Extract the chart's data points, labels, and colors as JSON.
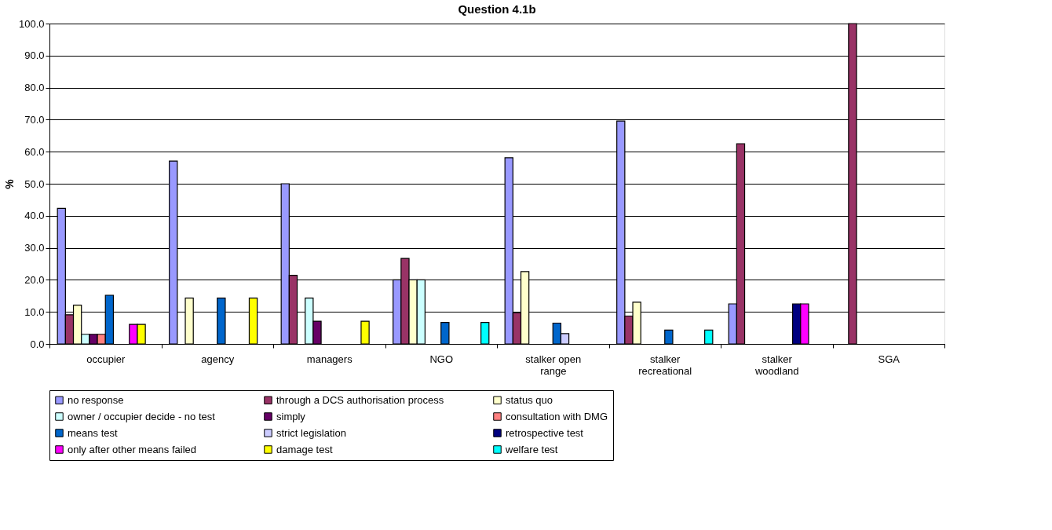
{
  "chart_data": {
    "type": "bar",
    "title": "Question 4.1b",
    "ylabel": "%",
    "categories": [
      "occupier",
      "agency",
      "managers",
      "NGO",
      "stalker open range",
      "stalker recreational",
      "stalker woodland",
      "SGA"
    ],
    "series": [
      {
        "name": "no response",
        "color": "#9999ff",
        "values": [
          42.3,
          57.1,
          50.0,
          20.0,
          58.1,
          69.6,
          12.5,
          null
        ]
      },
      {
        "name": "through a DCS authorisation process",
        "color": "#993366",
        "values": [
          9.1,
          null,
          21.4,
          26.7,
          9.7,
          8.7,
          62.5,
          100.0
        ]
      },
      {
        "name": "status quo",
        "color": "#ffffcc",
        "values": [
          12.1,
          14.3,
          null,
          20.0,
          22.6,
          13.0,
          null,
          null
        ]
      },
      {
        "name": "owner / occupier decide - no test",
        "color": "#ccffff",
        "values": [
          3.0,
          null,
          14.3,
          20.0,
          null,
          null,
          null,
          null
        ]
      },
      {
        "name": "simply",
        "color": "#660066",
        "values": [
          3.0,
          null,
          7.1,
          null,
          null,
          null,
          null,
          null
        ]
      },
      {
        "name": "consultation with DMG",
        "color": "#ff8080",
        "values": [
          3.0,
          null,
          null,
          null,
          null,
          null,
          null,
          null
        ]
      },
      {
        "name": "means test",
        "color": "#0066cc",
        "values": [
          15.2,
          14.3,
          null,
          6.7,
          6.5,
          4.3,
          null,
          null
        ]
      },
      {
        "name": "strict legislation",
        "color": "#ccccff",
        "values": [
          null,
          null,
          null,
          null,
          3.2,
          null,
          null,
          null
        ]
      },
      {
        "name": "retrospective test",
        "color": "#000080",
        "values": [
          null,
          null,
          null,
          null,
          null,
          null,
          12.5,
          null
        ]
      },
      {
        "name": "only after other means failed",
        "color": "#ff00ff",
        "values": [
          6.1,
          null,
          null,
          null,
          null,
          null,
          12.5,
          null
        ]
      },
      {
        "name": "damage test",
        "color": "#ffff00",
        "values": [
          6.1,
          14.3,
          7.1,
          null,
          null,
          null,
          null,
          null
        ]
      },
      {
        "name": "welfare test",
        "color": "#00ffff",
        "values": [
          null,
          null,
          null,
          6.7,
          null,
          4.3,
          null,
          null
        ]
      }
    ],
    "ylim": [
      0,
      100
    ],
    "yticks": [
      {
        "value": 0,
        "label": "0.0"
      },
      {
        "value": 10,
        "label": "10.0"
      },
      {
        "value": 20,
        "label": "20.0"
      },
      {
        "value": 30,
        "label": "30.0"
      },
      {
        "value": 40,
        "label": "40.0"
      },
      {
        "value": 50,
        "label": "50.0"
      },
      {
        "value": 60,
        "label": "60.0"
      },
      {
        "value": 70,
        "label": "70.0"
      },
      {
        "value": 80,
        "label": "80.0"
      },
      {
        "value": 90,
        "label": "90.0"
      },
      {
        "value": 100,
        "label": "100.0"
      }
    ],
    "grid": "y",
    "legend": "bottom"
  }
}
